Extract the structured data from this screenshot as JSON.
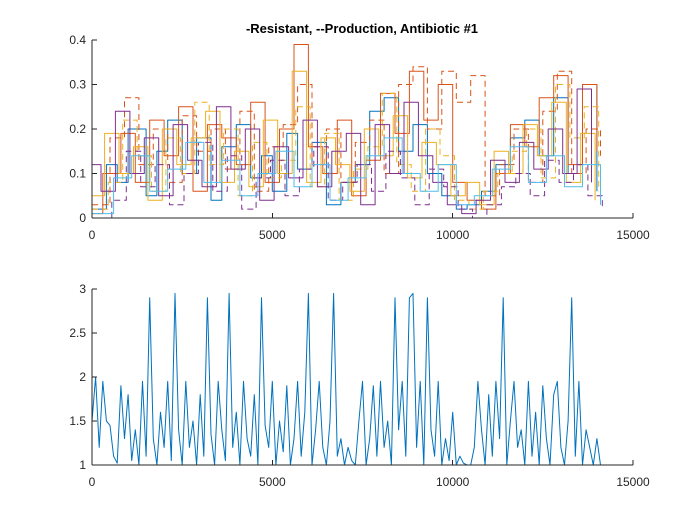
{
  "chart_data": [
    {
      "type": "line",
      "title": "-Resistant, --Production, Antibiotic #1",
      "xlim": [
        0,
        15000
      ],
      "ylim": [
        0,
        0.4
      ],
      "xticks": [
        0,
        5000,
        10000,
        15000
      ],
      "yticks": [
        0,
        0.1,
        0.2,
        0.3,
        0.4
      ],
      "xtick_labels": [
        "0",
        "5000",
        "10000",
        "15000"
      ],
      "ytick_labels": [
        "0",
        "0.1",
        "0.2",
        "0.3",
        "0.4"
      ],
      "grid": false,
      "series": [
        {
          "style": "solid",
          "color": "#0072BD",
          "x": [
            0,
            400,
            700,
            1000,
            1500,
            1800,
            2100,
            2500,
            2900,
            3300,
            3600,
            4000,
            4400,
            4700,
            5000,
            5400,
            5700,
            6100,
            6500,
            6900,
            7300,
            7700,
            8100,
            8500,
            8900,
            9300,
            9700,
            10100,
            10400,
            10800,
            11200,
            11600,
            12000,
            12400,
            12800,
            13200,
            13600,
            14000
          ],
          "y": [
            0.02,
            0.12,
            0.08,
            0.2,
            0.05,
            0.15,
            0.22,
            0.1,
            0.18,
            0.04,
            0.16,
            0.21,
            0.09,
            0.14,
            0.06,
            0.19,
            0.11,
            0.17,
            0.03,
            0.08,
            0.12,
            0.24,
            0.27,
            0.15,
            0.21,
            0.1,
            0.05,
            0.02,
            0.03,
            0.06,
            0.12,
            0.18,
            0.22,
            0.14,
            0.27,
            0.1,
            0.3,
            0.06
          ]
        },
        {
          "style": "solid",
          "color": "#D95319",
          "x": [
            0,
            300,
            800,
            1200,
            1600,
            2000,
            2400,
            2800,
            3200,
            3600,
            4000,
            4400,
            4800,
            5200,
            5600,
            6000,
            6400,
            6800,
            7200,
            7600,
            8000,
            8400,
            8800,
            9200,
            9600,
            10000,
            10400,
            10800,
            11200,
            11600,
            12000,
            12400,
            12800,
            13200,
            13600,
            14000
          ],
          "y": [
            0.01,
            0.1,
            0.19,
            0.08,
            0.22,
            0.14,
            0.25,
            0.06,
            0.21,
            0.18,
            0.12,
            0.26,
            0.08,
            0.2,
            0.39,
            0.16,
            0.1,
            0.22,
            0.05,
            0.13,
            0.28,
            0.19,
            0.33,
            0.22,
            0.3,
            0.08,
            0.04,
            0.02,
            0.1,
            0.21,
            0.16,
            0.27,
            0.32,
            0.12,
            0.3,
            0.15
          ]
        },
        {
          "style": "dashed",
          "color": "#D95319",
          "x": [
            0,
            500,
            900,
            1300,
            1700,
            2100,
            2500,
            2900,
            3300,
            3700,
            4100,
            4500,
            4900,
            5300,
            5700,
            6100,
            6500,
            6900,
            7300,
            7700,
            8100,
            8500,
            8900,
            9300,
            9700,
            10100,
            10500,
            10900,
            11300,
            11700,
            12100,
            12500,
            12900,
            13300,
            13700,
            14100
          ],
          "y": [
            0.03,
            0.18,
            0.27,
            0.12,
            0.2,
            0.08,
            0.23,
            0.15,
            0.2,
            0.11,
            0.24,
            0.06,
            0.16,
            0.21,
            0.3,
            0.12,
            0.2,
            0.08,
            0.17,
            0.22,
            0.1,
            0.3,
            0.34,
            0.2,
            0.33,
            0.26,
            0.32,
            0.05,
            0.12,
            0.2,
            0.08,
            0.24,
            0.33,
            0.1,
            0.2,
            0.14
          ]
        },
        {
          "style": "solid",
          "color": "#EDB120",
          "x": [
            0,
            350,
            750,
            1150,
            1550,
            1950,
            2350,
            2750,
            3150,
            3550,
            3950,
            4350,
            4750,
            5150,
            5550,
            5950,
            6350,
            6750,
            7150,
            7550,
            7950,
            8350,
            8750,
            9150,
            9550,
            9950,
            10350,
            10750,
            11150,
            11550,
            11950,
            12350,
            12750,
            13150,
            13550,
            13950
          ],
          "y": [
            0.05,
            0.19,
            0.1,
            0.16,
            0.04,
            0.2,
            0.12,
            0.18,
            0.24,
            0.08,
            0.15,
            0.07,
            0.22,
            0.1,
            0.33,
            0.08,
            0.18,
            0.12,
            0.06,
            0.2,
            0.14,
            0.23,
            0.09,
            0.17,
            0.12,
            0.05,
            0.08,
            0.03,
            0.15,
            0.1,
            0.21,
            0.14,
            0.26,
            0.08,
            0.19,
            0.04
          ]
        },
        {
          "style": "dashed",
          "color": "#EDB120",
          "x": [
            0,
            450,
            850,
            1250,
            1650,
            2050,
            2450,
            2850,
            3250,
            3650,
            4050,
            4450,
            4850,
            5250,
            5650,
            6050,
            6450,
            6850,
            7250,
            7650,
            8050,
            8450,
            8850,
            9250,
            9650,
            10050,
            10450,
            10850,
            11250,
            11650,
            12050,
            12450,
            12850,
            13250,
            13650,
            14050
          ],
          "y": [
            0.02,
            0.08,
            0.22,
            0.14,
            0.06,
            0.18,
            0.1,
            0.26,
            0.12,
            0.2,
            0.05,
            0.17,
            0.09,
            0.13,
            0.25,
            0.07,
            0.19,
            0.04,
            0.11,
            0.16,
            0.28,
            0.12,
            0.06,
            0.2,
            0.14,
            0.04,
            0.02,
            0.06,
            0.1,
            0.15,
            0.2,
            0.09,
            0.3,
            0.18,
            0.25,
            0.06
          ]
        },
        {
          "style": "solid",
          "color": "#7E2F8E",
          "x": [
            0,
            250,
            650,
            1050,
            1450,
            1850,
            2250,
            2650,
            3050,
            3450,
            3850,
            4250,
            4650,
            5050,
            5450,
            5850,
            6250,
            6650,
            7050,
            7450,
            7850,
            8250,
            8650,
            9050,
            9450,
            9850,
            10250,
            10650,
            11050,
            11450,
            11850,
            12250,
            12650,
            13050,
            13450,
            13850
          ],
          "y": [
            0.12,
            0.06,
            0.24,
            0.1,
            0.18,
            0.05,
            0.21,
            0.13,
            0.07,
            0.25,
            0.11,
            0.2,
            0.04,
            0.16,
            0.09,
            0.22,
            0.07,
            0.15,
            0.19,
            0.03,
            0.21,
            0.1,
            0.26,
            0.14,
            0.08,
            0.03,
            0.01,
            0.04,
            0.13,
            0.08,
            0.17,
            0.11,
            0.2,
            0.1,
            0.29,
            0.08
          ]
        },
        {
          "style": "dashed",
          "color": "#7E2F8E",
          "x": [
            0,
            550,
            950,
            1350,
            1750,
            2150,
            2550,
            2950,
            3350,
            3750,
            4150,
            4550,
            4950,
            5350,
            5750,
            6150,
            6550,
            6950,
            7350,
            7750,
            8150,
            8550,
            8950,
            9350,
            9750,
            10150,
            10550,
            10950,
            11350,
            11750,
            12150,
            12550,
            12950,
            13350,
            13750,
            14150
          ],
          "y": [
            0.0,
            0.04,
            0.15,
            0.07,
            0.12,
            0.03,
            0.1,
            0.17,
            0.06,
            0.14,
            0.02,
            0.09,
            0.13,
            0.05,
            0.11,
            0.16,
            0.04,
            0.08,
            0.12,
            0.06,
            0.15,
            0.09,
            0.03,
            0.11,
            0.07,
            0.02,
            0.0,
            0.03,
            0.07,
            0.1,
            0.05,
            0.13,
            0.08,
            0.12,
            0.05,
            0.02
          ]
        },
        {
          "style": "solid",
          "color": "#4DBEEE",
          "x": [
            0,
            600,
            1100,
            1600,
            2100,
            2600,
            3100,
            3600,
            4100,
            4600,
            5100,
            5600,
            6100,
            6600,
            7100,
            7600,
            8100,
            8600,
            9100,
            9600,
            10100,
            10600,
            11100,
            11600,
            12100,
            12600,
            13100,
            13600,
            14100
          ],
          "y": [
            0.01,
            0.09,
            0.14,
            0.06,
            0.11,
            0.17,
            0.08,
            0.13,
            0.05,
            0.1,
            0.15,
            0.07,
            0.12,
            0.04,
            0.09,
            0.14,
            0.18,
            0.1,
            0.06,
            0.12,
            0.03,
            0.05,
            0.11,
            0.16,
            0.08,
            0.14,
            0.07,
            0.12,
            0.03
          ]
        }
      ]
    },
    {
      "type": "line",
      "title": "",
      "xlim": [
        0,
        15000
      ],
      "ylim": [
        1,
        3
      ],
      "xticks": [
        0,
        5000,
        10000,
        15000
      ],
      "yticks": [
        1,
        1.5,
        2,
        2.5,
        3
      ],
      "xtick_labels": [
        "0",
        "5000",
        "10000",
        "15000"
      ],
      "ytick_labels": [
        "1",
        "1.5",
        "2",
        "2.5",
        "3"
      ],
      "grid": false,
      "series": [
        {
          "style": "solid",
          "color": "#0072BD",
          "x": [
            0,
            100,
            200,
            300,
            400,
            500,
            600,
            700,
            800,
            900,
            1000,
            1100,
            1200,
            1300,
            1400,
            1500,
            1600,
            1700,
            1800,
            1900,
            2000,
            2100,
            2200,
            2300,
            2400,
            2500,
            2600,
            2700,
            2800,
            2900,
            3000,
            3100,
            3200,
            3300,
            3400,
            3500,
            3600,
            3700,
            3800,
            3900,
            4000,
            4100,
            4200,
            4300,
            4400,
            4500,
            4600,
            4700,
            4800,
            4900,
            5000,
            5100,
            5200,
            5300,
            5400,
            5500,
            5600,
            5700,
            5800,
            5900,
            6000,
            6100,
            6200,
            6300,
            6400,
            6500,
            6600,
            6700,
            6800,
            6900,
            7000,
            7100,
            7200,
            7300,
            7400,
            7500,
            7600,
            7700,
            7800,
            7900,
            8000,
            8100,
            8200,
            8300,
            8400,
            8500,
            8600,
            8700,
            8800,
            8900,
            9000,
            9100,
            9200,
            9300,
            9400,
            9500,
            9600,
            9700,
            9800,
            9900,
            10000,
            10100,
            10200,
            10300,
            10400,
            10500,
            10600,
            10700,
            10800,
            10900,
            11000,
            11100,
            11200,
            11300,
            11400,
            11500,
            11600,
            11700,
            11800,
            11900,
            12000,
            12100,
            12200,
            12300,
            12400,
            12500,
            12600,
            12700,
            12800,
            12900,
            13000,
            13100,
            13200,
            13300,
            13400,
            13500,
            13600,
            13700,
            13800,
            13900,
            14000,
            14100
          ],
          "y": [
            1.5,
            2.0,
            1.2,
            1.95,
            1.5,
            1.45,
            1.1,
            1.02,
            1.9,
            1.3,
            1.8,
            1.05,
            1.4,
            1.0,
            1.95,
            1.1,
            2.9,
            1.3,
            1.0,
            1.6,
            1.2,
            1.95,
            1.05,
            2.95,
            1.4,
            1.0,
            1.95,
            1.2,
            1.5,
            1.0,
            1.8,
            1.1,
            2.9,
            1.35,
            1.0,
            1.95,
            1.4,
            1.05,
            2.95,
            1.2,
            1.6,
            1.0,
            1.95,
            1.3,
            1.1,
            1.8,
            1.0,
            2.9,
            1.45,
            1.2,
            1.95,
            1.0,
            1.5,
            1.15,
            1.9,
            1.0,
            1.3,
            1.95,
            1.1,
            1.6,
            2.95,
            1.0,
            1.4,
            1.95,
            1.2,
            1.0,
            1.5,
            2.95,
            1.1,
            1.3,
            1.0,
            1.2,
            1.05,
            1.0,
            1.5,
            1.95,
            1.0,
            1.3,
            1.9,
            1.1,
            1.95,
            1.2,
            1.5,
            1.0,
            2.9,
            1.4,
            1.95,
            1.1,
            2.9,
            2.95,
            1.2,
            1.95,
            1.0,
            2.9,
            1.4,
            1.1,
            1.95,
            1.0,
            1.3,
            1.05,
            1.6,
            1.0,
            1.1,
            1.02,
            1.0,
            1.0,
            1.2,
            1.95,
            1.4,
            1.0,
            1.8,
            1.1,
            1.95,
            1.3,
            2.9,
            1.0,
            1.5,
            1.95,
            1.2,
            1.4,
            1.0,
            1.95,
            1.1,
            1.6,
            1.0,
            1.9,
            1.3,
            1.0,
            1.8,
            1.95,
            1.2,
            1.0,
            1.5,
            2.9,
            1.1,
            1.95,
            1.0,
            1.4,
            1.2,
            1.0,
            1.3,
            1.0
          ]
        }
      ]
    }
  ]
}
